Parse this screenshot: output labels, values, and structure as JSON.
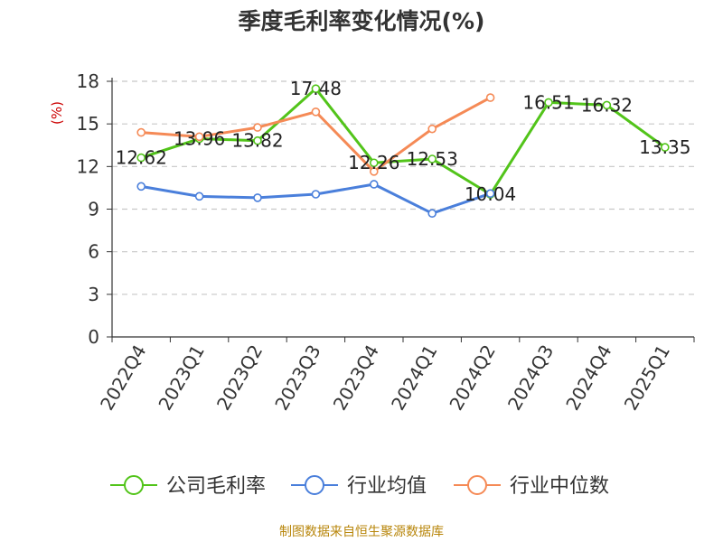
{
  "chart_data": {
    "type": "line",
    "title": "季度毛利率变化情况(%)",
    "ylabel": "(%)",
    "xlabel": "",
    "ylim": [
      0,
      18
    ],
    "yticks": [
      0,
      3,
      6,
      9,
      12,
      15,
      18
    ],
    "grid": true,
    "legend_position": "bottom",
    "categories": [
      "2022Q4",
      "2023Q1",
      "2023Q2",
      "2023Q3",
      "2023Q4",
      "2024Q1",
      "2024Q2",
      "2024Q3",
      "2024Q4",
      "2025Q1"
    ],
    "series": [
      {
        "name": "公司毛利率",
        "color": "#52c41a",
        "values": [
          12.62,
          13.96,
          13.82,
          17.48,
          12.26,
          12.53,
          10.04,
          16.51,
          16.32,
          13.35
        ],
        "show_labels": true
      },
      {
        "name": "行业均值",
        "color": "#4a7fdb",
        "values": [
          10.6,
          9.9,
          9.8,
          10.05,
          10.75,
          8.7,
          10.1,
          null,
          null,
          null
        ],
        "show_labels": false
      },
      {
        "name": "行业中位数",
        "color": "#f58a56",
        "values": [
          14.4,
          14.1,
          14.75,
          15.85,
          11.65,
          14.65,
          16.85,
          null,
          null,
          null
        ],
        "show_labels": false
      }
    ]
  },
  "source": "制图数据来自恒生聚源数据库"
}
